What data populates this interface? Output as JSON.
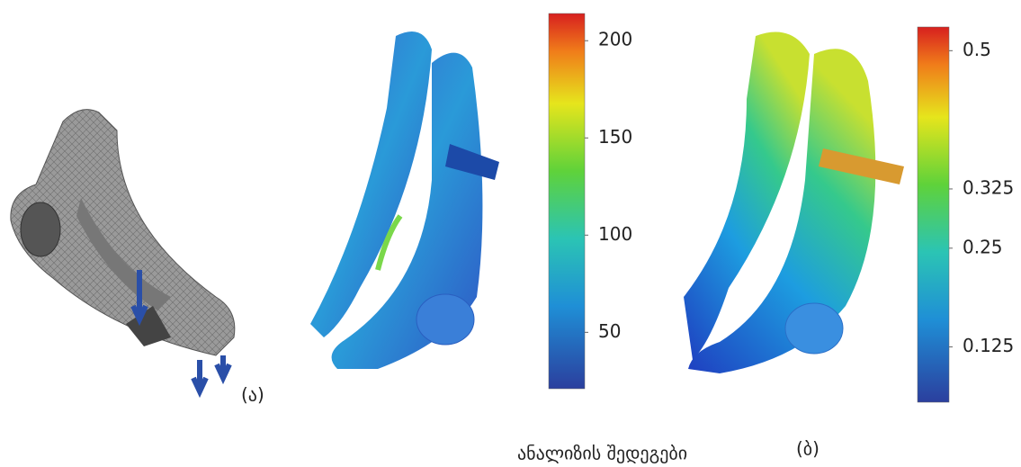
{
  "captions": {
    "left": "(ა)",
    "center": "ანალიზის შედეგები",
    "right": "(ბ)"
  },
  "colorbars": [
    {
      "range": [
        21,
        214
      ],
      "ticks": [
        200,
        150,
        100,
        50
      ]
    },
    {
      "range": [
        0.055,
        0.53
      ],
      "ticks": [
        0.5,
        0.325,
        0.25,
        0.125
      ]
    }
  ]
}
